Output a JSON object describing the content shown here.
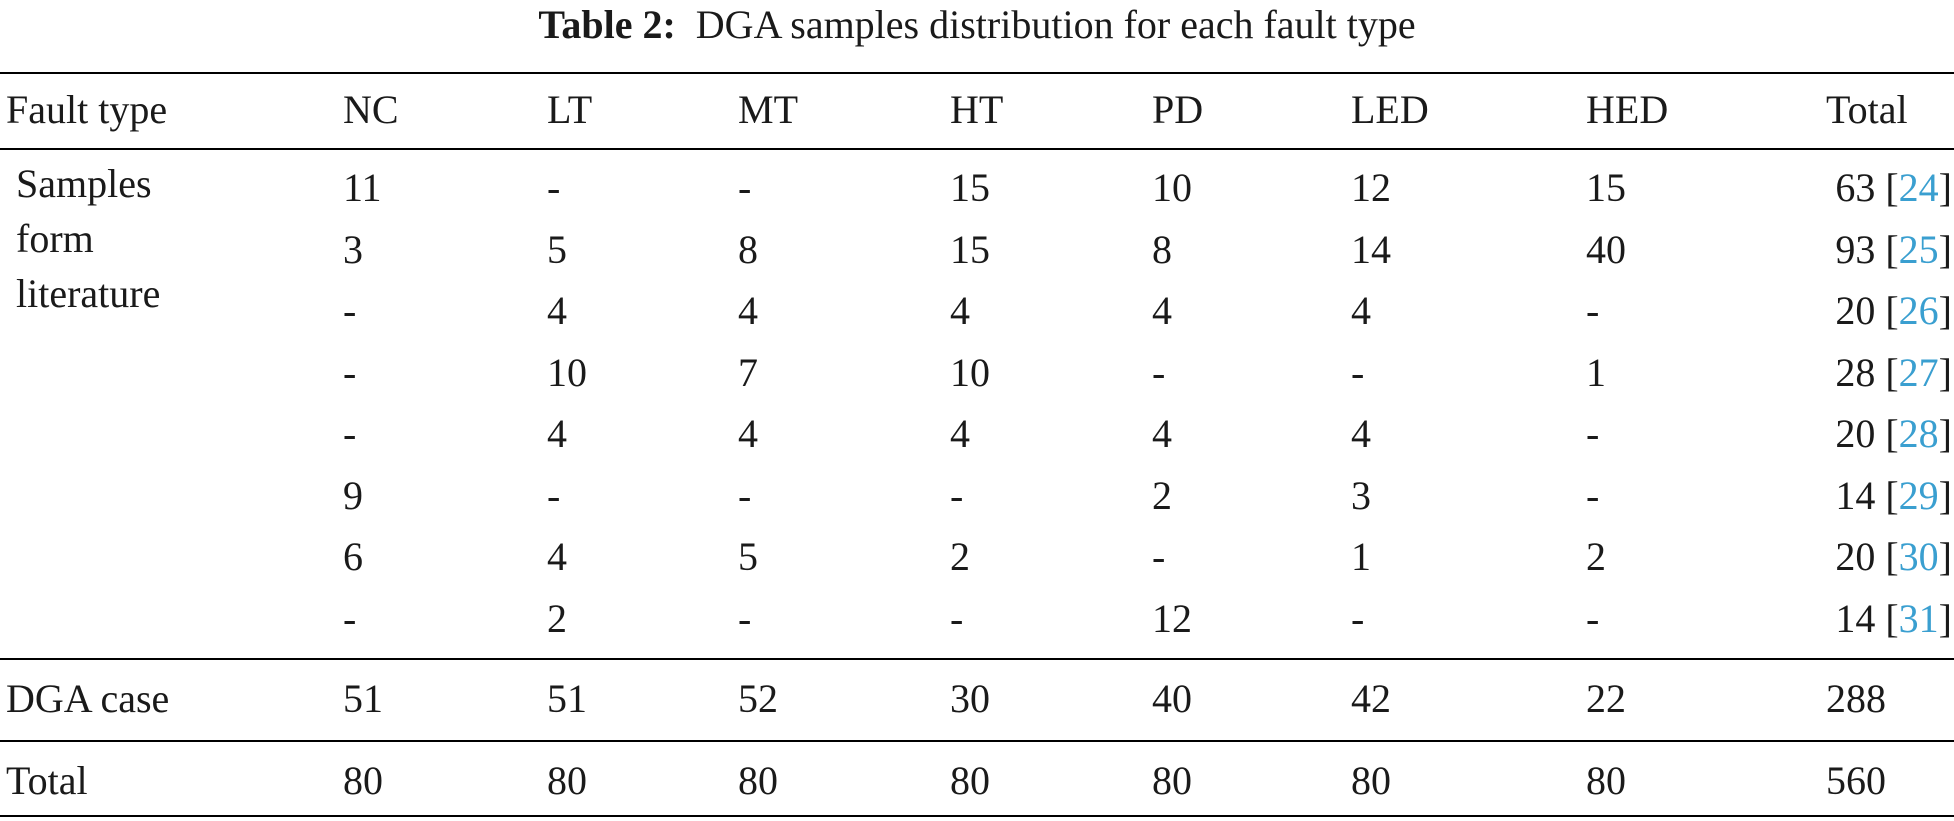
{
  "caption": {
    "label": "Table 2:",
    "text": "DGA samples distribution for each fault type"
  },
  "table": {
    "headers": [
      "Fault type",
      "NC",
      "LT",
      "MT",
      "HT",
      "PD",
      "LED",
      "HED",
      "Total"
    ],
    "group_label": [
      "Samples",
      "form",
      "literature"
    ],
    "literature_rows": [
      {
        "cells": [
          "11",
          "-",
          "-",
          "15",
          "10",
          "12",
          "15"
        ],
        "total": "63",
        "ref": "24"
      },
      {
        "cells": [
          "3",
          "5",
          "8",
          "15",
          "8",
          "14",
          "40"
        ],
        "total": "93",
        "ref": "25"
      },
      {
        "cells": [
          "-",
          "4",
          "4",
          "4",
          "4",
          "4",
          "-"
        ],
        "total": "20",
        "ref": "26"
      },
      {
        "cells": [
          "-",
          "10",
          "7",
          "10",
          "-",
          "-",
          "1"
        ],
        "total": "28",
        "ref": "27"
      },
      {
        "cells": [
          "-",
          "4",
          "4",
          "4",
          "4",
          "4",
          "-"
        ],
        "total": "20",
        "ref": "28"
      },
      {
        "cells": [
          "9",
          "-",
          "-",
          "-",
          "2",
          "3",
          "-"
        ],
        "total": "14",
        "ref": "29"
      },
      {
        "cells": [
          "6",
          "4",
          "5",
          "2",
          "-",
          "1",
          "2"
        ],
        "total": "20",
        "ref": "30"
      },
      {
        "cells": [
          "-",
          "2",
          "-",
          "-",
          "12",
          "-",
          "-"
        ],
        "total": "14",
        "ref": "31"
      }
    ],
    "dga_row": {
      "label": "DGA case",
      "cells": [
        "51",
        "51",
        "52",
        "30",
        "40",
        "42",
        "22",
        "288"
      ]
    },
    "total_row": {
      "label": "Total",
      "cells": [
        "80",
        "80",
        "80",
        "80",
        "80",
        "80",
        "80",
        "560"
      ]
    }
  },
  "colors": {
    "text": "#1a1a1a",
    "rule": "#000000",
    "reference_link": "#3a9fd0"
  }
}
